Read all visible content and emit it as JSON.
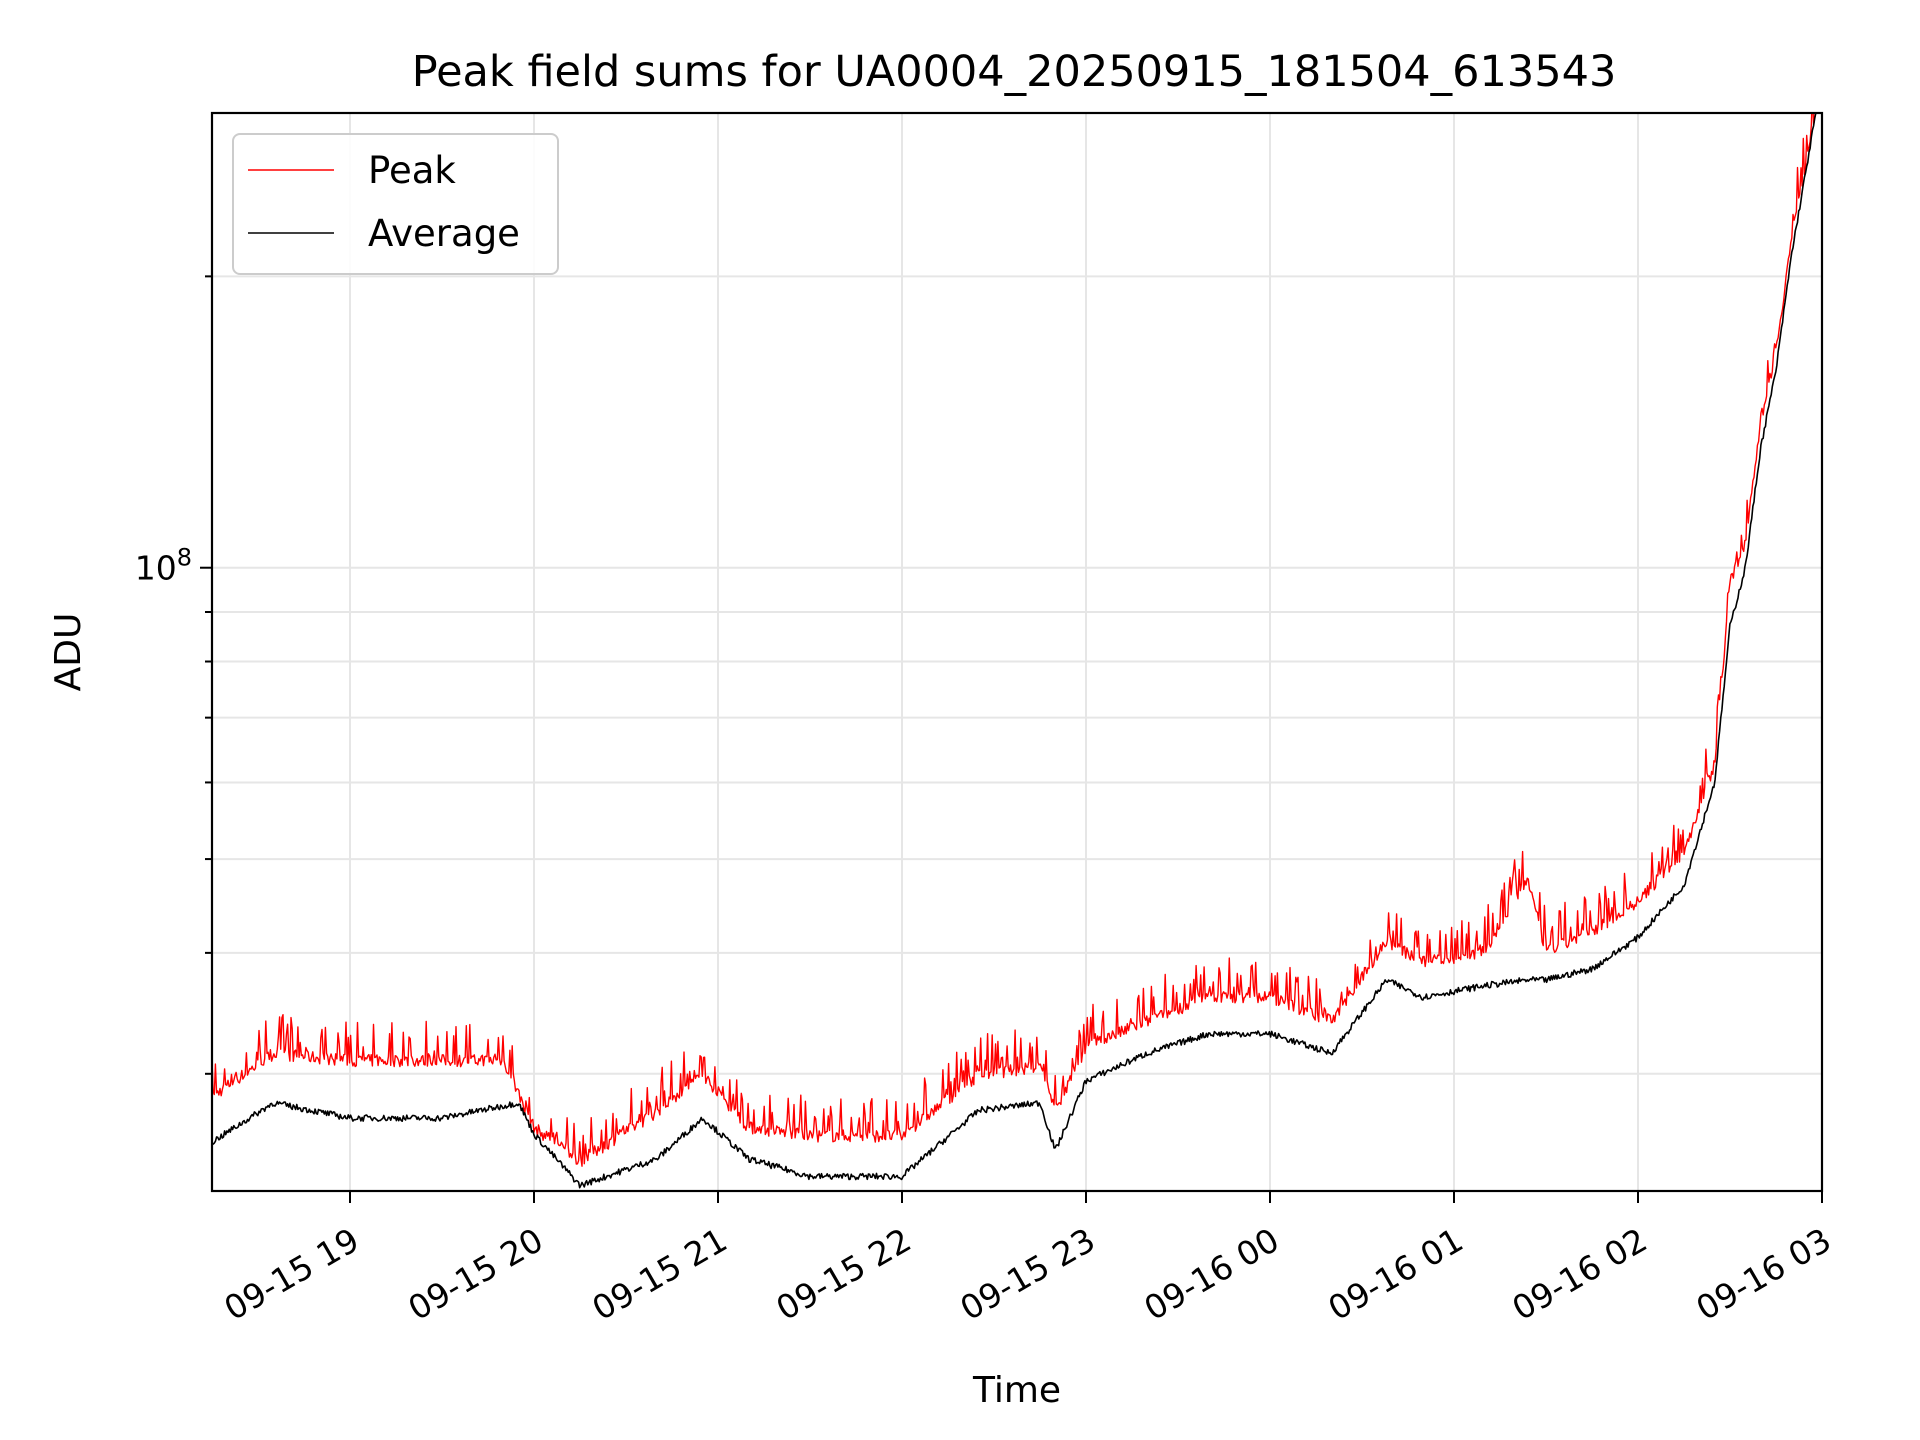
{
  "chart_data": {
    "type": "line",
    "title": "Peak field sums for UA0004_20250915_181504_613543",
    "xlabel": "Time",
    "ylabel": "ADU",
    "y_scale": "log",
    "grid": true,
    "legend_position": "upper-left",
    "xlim": [
      "2025-09-15 18:15",
      "2025-09-16 03:00"
    ],
    "ylim": [
      22700000,
      295000000
    ],
    "x_ticks": [
      {
        "value": "2025-09-15 19:00",
        "label": "09-15 19"
      },
      {
        "value": "2025-09-15 20:00",
        "label": "09-15 20"
      },
      {
        "value": "2025-09-15 21:00",
        "label": "09-15 21"
      },
      {
        "value": "2025-09-15 22:00",
        "label": "09-15 22"
      },
      {
        "value": "2025-09-15 23:00",
        "label": "09-15 23"
      },
      {
        "value": "2025-09-16 00:00",
        "label": "09-16 00"
      },
      {
        "value": "2025-09-16 01:00",
        "label": "09-16 01"
      },
      {
        "value": "2025-09-16 02:00",
        "label": "09-16 02"
      },
      {
        "value": "2025-09-16 03:00",
        "label": "09-16 03"
      }
    ],
    "y_major_ticks": [
      {
        "value": 100000000,
        "base": "10",
        "exp": "8"
      }
    ],
    "y_minor_ticks": [
      30000000,
      40000000,
      50000000,
      60000000,
      70000000,
      80000000,
      90000000,
      200000000
    ],
    "series": [
      {
        "name": "Peak",
        "color": "#ff0000",
        "points": [
          [
            "2025-09-15 18:15",
            28000000
          ],
          [
            "2025-09-15 18:35",
            31000000
          ],
          [
            "2025-09-15 19:00",
            30500000
          ],
          [
            "2025-09-15 19:30",
            30500000
          ],
          [
            "2025-09-15 19:50",
            30500000
          ],
          [
            "2025-09-15 20:00",
            26000000
          ],
          [
            "2025-09-15 20:15",
            24000000
          ],
          [
            "2025-09-15 20:40",
            27000000
          ],
          [
            "2025-09-15 20:55",
            29500000
          ],
          [
            "2025-09-15 21:10",
            26000000
          ],
          [
            "2025-09-15 21:30",
            25500000
          ],
          [
            "2025-09-15 22:00",
            25500000
          ],
          [
            "2025-09-15 22:25",
            29500000
          ],
          [
            "2025-09-15 22:45",
            30000000
          ],
          [
            "2025-09-15 22:50",
            27000000
          ],
          [
            "2025-09-15 23:00",
            31500000
          ],
          [
            "2025-09-15 23:20",
            33500000
          ],
          [
            "2025-09-15 23:40",
            35500000
          ],
          [
            "2025-09-16 00:00",
            35500000
          ],
          [
            "2025-09-16 00:20",
            33500000
          ],
          [
            "2025-09-16 00:38",
            40500000
          ],
          [
            "2025-09-16 00:50",
            38500000
          ],
          [
            "2025-09-16 01:10",
            39500000
          ],
          [
            "2025-09-16 01:24",
            47000000
          ],
          [
            "2025-09-16 01:30",
            39500000
          ],
          [
            "2025-09-16 01:45",
            41500000
          ],
          [
            "2025-09-16 02:00",
            44500000
          ],
          [
            "2025-09-16 02:15",
            50000000
          ],
          [
            "2025-09-16 02:25",
            62000000
          ],
          [
            "2025-09-16 02:30",
            95000000
          ],
          [
            "2025-09-16 02:35",
            105000000
          ],
          [
            "2025-09-16 02:40",
            140000000
          ],
          [
            "2025-09-16 02:45",
            165000000
          ],
          [
            "2025-09-16 02:50",
            215000000
          ],
          [
            "2025-09-16 02:58",
            295000000
          ]
        ]
      },
      {
        "name": "Average",
        "color": "#000000",
        "points": [
          [
            "2025-09-15 18:15",
            25500000
          ],
          [
            "2025-09-15 18:35",
            28000000
          ],
          [
            "2025-09-15 19:00",
            27000000
          ],
          [
            "2025-09-15 19:30",
            27000000
          ],
          [
            "2025-09-15 19:55",
            28000000
          ],
          [
            "2025-09-15 20:00",
            26000000
          ],
          [
            "2025-09-15 20:15",
            23000000
          ],
          [
            "2025-09-15 20:40",
            24500000
          ],
          [
            "2025-09-15 20:55",
            27000000
          ],
          [
            "2025-09-15 21:10",
            24500000
          ],
          [
            "2025-09-15 21:30",
            23500000
          ],
          [
            "2025-09-15 22:00",
            23500000
          ],
          [
            "2025-09-15 22:25",
            27500000
          ],
          [
            "2025-09-15 22:45",
            28000000
          ],
          [
            "2025-09-15 22:50",
            25000000
          ],
          [
            "2025-09-15 23:00",
            29500000
          ],
          [
            "2025-09-15 23:20",
            31500000
          ],
          [
            "2025-09-15 23:40",
            33000000
          ],
          [
            "2025-09-16 00:00",
            33000000
          ],
          [
            "2025-09-16 00:20",
            31500000
          ],
          [
            "2025-09-16 00:38",
            37500000
          ],
          [
            "2025-09-16 00:50",
            36000000
          ],
          [
            "2025-09-16 01:10",
            37000000
          ],
          [
            "2025-09-16 01:24",
            37500000
          ],
          [
            "2025-09-16 01:30",
            37500000
          ],
          [
            "2025-09-16 01:45",
            38500000
          ],
          [
            "2025-09-16 02:00",
            41500000
          ],
          [
            "2025-09-16 02:15",
            47000000
          ],
          [
            "2025-09-16 02:25",
            60000000
          ],
          [
            "2025-09-16 02:30",
            87000000
          ],
          [
            "2025-09-16 02:35",
            100000000
          ],
          [
            "2025-09-16 02:40",
            133000000
          ],
          [
            "2025-09-16 02:45",
            160000000
          ],
          [
            "2025-09-16 02:50",
            210000000
          ],
          [
            "2025-09-16 02:58",
            295000000
          ]
        ]
      }
    ]
  }
}
